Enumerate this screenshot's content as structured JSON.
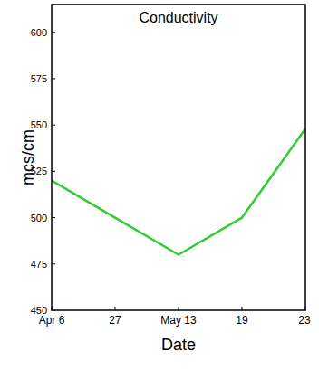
{
  "chart_data": {
    "type": "line",
    "title": "Conductivity",
    "xlabel": "Date",
    "ylabel": "mcs/cm",
    "categories": [
      "Apr 6",
      "27",
      "May 13",
      "19",
      "23"
    ],
    "values": [
      520,
      500,
      480,
      500,
      548
    ],
    "color": "#33cc33",
    "ylim": [
      450,
      615
    ],
    "yticks": [
      450,
      475,
      500,
      525,
      550,
      575,
      600
    ],
    "grid": false
  }
}
